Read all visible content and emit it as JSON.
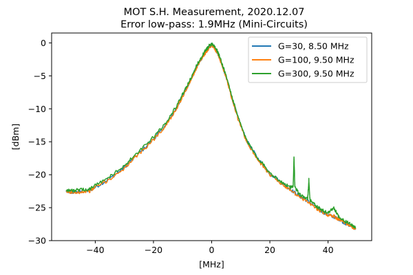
{
  "chart_data": {
    "type": "line",
    "title": "MOT S.H. Measurement, 2020.12.07",
    "subtitle": "Error low-pass: 1.9MHz (Mini-Circuits)",
    "xlabel": "[MHz]",
    "ylabel": "[dBm]",
    "xlim": [
      -55,
      55
    ],
    "ylim": [
      -30,
      1.5
    ],
    "xticks": [
      -40,
      -20,
      0,
      20,
      40
    ],
    "yticks": [
      0,
      -5,
      -10,
      -15,
      -20,
      -25,
      -30
    ],
    "xtick_labels": [
      "−40",
      "−20",
      "0",
      "20",
      "40"
    ],
    "ytick_labels": [
      "0",
      "−5",
      "−10",
      "−15",
      "−20",
      "−25",
      "−30"
    ],
    "legend_position": "top-right",
    "grid": false,
    "series": [
      {
        "name": "G=30, 8.50 MHz",
        "color": "#1f77b4",
        "x": [
          -50,
          -48,
          -45,
          -42,
          -40,
          -35,
          -30,
          -25,
          -20,
          -16,
          -12,
          -9,
          -7,
          -5,
          -3,
          -2,
          -1,
          0,
          1,
          2,
          3,
          5,
          7,
          9,
          12,
          16,
          20,
          24,
          27,
          30,
          33,
          36,
          38,
          40,
          42,
          44,
          46,
          48,
          49.5
        ],
        "y": [
          -22.5,
          -22.7,
          -22.6,
          -22.4,
          -21.9,
          -20.6,
          -18.9,
          -16.8,
          -14.6,
          -12.6,
          -9.8,
          -7.2,
          -5.4,
          -3.5,
          -2.0,
          -1.3,
          -0.7,
          -0.2,
          -0.7,
          -1.5,
          -2.6,
          -5.2,
          -8.4,
          -11.3,
          -14.8,
          -17.6,
          -19.8,
          -21.2,
          -22.2,
          -23.2,
          -24.0,
          -25.0,
          -25.6,
          -26.1,
          -26.4,
          -26.8,
          -27.4,
          -27.8,
          -28.2
        ]
      },
      {
        "name": "G=100, 9.50 MHz",
        "color": "#ff7f0e",
        "x": [
          -50,
          -48,
          -45,
          -42,
          -40,
          -35,
          -30,
          -25,
          -20,
          -16,
          -12,
          -9,
          -7,
          -5,
          -3,
          -2,
          -1,
          0,
          1,
          2,
          3,
          5,
          7,
          9,
          12,
          16,
          20,
          24,
          27,
          30,
          33,
          36,
          38,
          40,
          42,
          44,
          46,
          48,
          49.5
        ],
        "y": [
          -22.6,
          -22.7,
          -22.6,
          -22.5,
          -21.9,
          -20.7,
          -19.0,
          -16.9,
          -14.7,
          -12.7,
          -9.9,
          -7.3,
          -5.5,
          -3.6,
          -2.1,
          -1.4,
          -0.8,
          -0.3,
          -0.8,
          -1.6,
          -2.7,
          -5.3,
          -8.5,
          -11.5,
          -15.0,
          -17.8,
          -20.0,
          -21.4,
          -22.4,
          -23.3,
          -24.1,
          -25.1,
          -25.7,
          -26.1,
          -26.3,
          -26.9,
          -27.3,
          -27.8,
          -28.3
        ]
      },
      {
        "name": "G=300, 9.50 MHz",
        "color": "#2ca02c",
        "x": [
          -50,
          -48,
          -45,
          -42,
          -40,
          -35,
          -30,
          -25,
          -20,
          -16,
          -12,
          -9,
          -7,
          -5,
          -3,
          -2,
          -1,
          0,
          1,
          2,
          3,
          5,
          7,
          9,
          12,
          16,
          20,
          24,
          27,
          28,
          28.3,
          28.6,
          30,
          33,
          33.4,
          33.8,
          36,
          38,
          40,
          42,
          44,
          46,
          48,
          49.5
        ],
        "y": [
          -22.3,
          -22.4,
          -22.3,
          -22.2,
          -21.6,
          -20.3,
          -18.6,
          -16.5,
          -14.3,
          -12.3,
          -9.5,
          -7.0,
          -5.2,
          -3.3,
          -1.8,
          -1.1,
          -0.5,
          -0.1,
          -0.5,
          -1.3,
          -2.4,
          -5.0,
          -8.2,
          -11.2,
          -14.8,
          -17.5,
          -19.7,
          -21.1,
          -21.9,
          -21.9,
          -17.2,
          -21.9,
          -22.9,
          -23.7,
          -20.8,
          -23.9,
          -24.8,
          -25.4,
          -25.8,
          -25.0,
          -26.6,
          -27.1,
          -27.6,
          -28.0
        ]
      }
    ]
  }
}
